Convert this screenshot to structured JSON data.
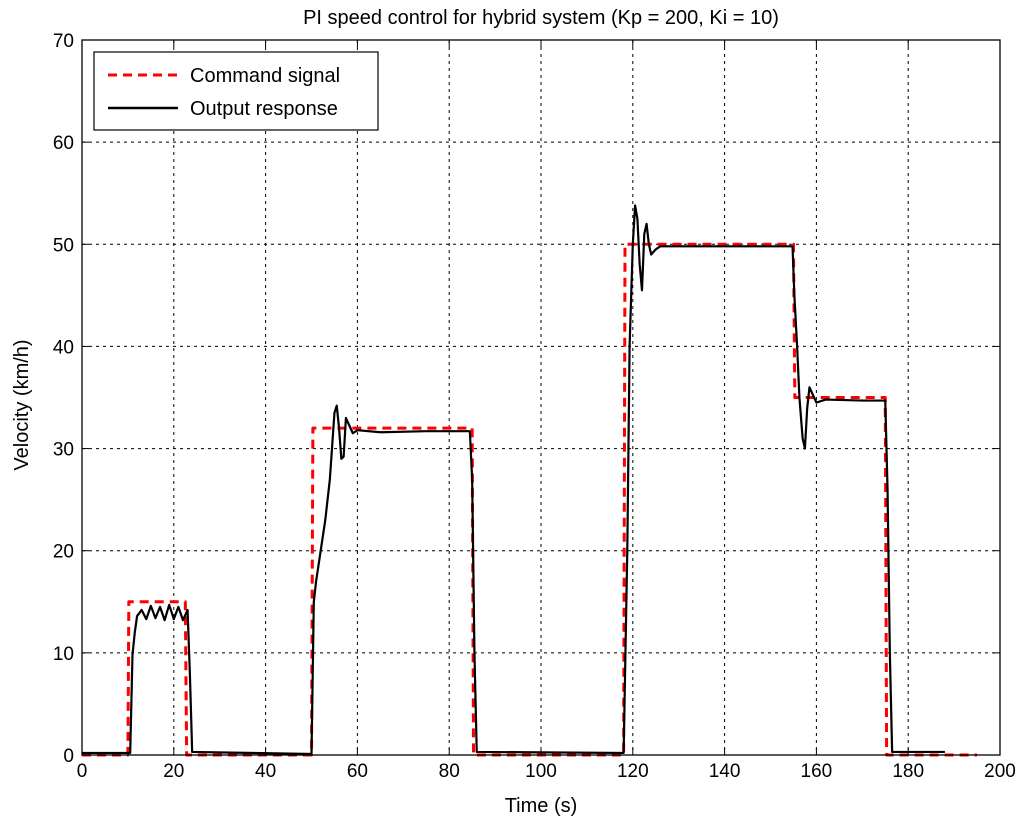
{
  "chart_data": {
    "type": "line",
    "title": "PI speed control for hybrid system (Kp = 200, Ki = 10)",
    "xlabel": "Time (s)",
    "ylabel": "Velocity (km/h)",
    "xlim": [
      0,
      200
    ],
    "ylim": [
      0,
      70
    ],
    "xticks": [
      0,
      20,
      40,
      60,
      80,
      100,
      120,
      140,
      160,
      180,
      200
    ],
    "yticks": [
      0,
      10,
      20,
      30,
      40,
      50,
      60,
      70
    ],
    "grid": true,
    "legend_position": "top-left",
    "series": [
      {
        "name": "Command signal",
        "color": "#ff0000",
        "style": "dashed",
        "points": [
          [
            0,
            0
          ],
          [
            10,
            0
          ],
          [
            10.2,
            15
          ],
          [
            22.5,
            15
          ],
          [
            22.8,
            0
          ],
          [
            50,
            0
          ],
          [
            50.3,
            32
          ],
          [
            85,
            32
          ],
          [
            85.3,
            0
          ],
          [
            118,
            0
          ],
          [
            118.3,
            50
          ],
          [
            155,
            50
          ],
          [
            155.3,
            35
          ],
          [
            175,
            35
          ],
          [
            175.3,
            0
          ],
          [
            195,
            0
          ]
        ]
      },
      {
        "name": "Output response",
        "color": "#000000",
        "style": "solid",
        "points": [
          [
            0,
            0.2
          ],
          [
            10.5,
            0.2
          ],
          [
            11,
            9.8
          ],
          [
            11.5,
            12
          ],
          [
            12,
            13.6
          ],
          [
            13,
            14.2
          ],
          [
            14,
            13.3
          ],
          [
            15,
            14.6
          ],
          [
            16,
            13.4
          ],
          [
            17,
            14.5
          ],
          [
            18,
            13.2
          ],
          [
            19,
            14.7
          ],
          [
            20,
            13.3
          ],
          [
            21,
            14.5
          ],
          [
            22,
            13.2
          ],
          [
            23,
            14.2
          ],
          [
            23.5,
            8
          ],
          [
            24,
            0.3
          ],
          [
            50,
            0.1
          ],
          [
            50.5,
            15
          ],
          [
            51,
            17
          ],
          [
            52,
            20
          ],
          [
            53,
            23
          ],
          [
            54,
            27
          ],
          [
            55,
            33.5
          ],
          [
            55.5,
            34.2
          ],
          [
            56,
            32
          ],
          [
            56.5,
            29
          ],
          [
            57,
            29.2
          ],
          [
            57.5,
            33
          ],
          [
            58,
            32.5
          ],
          [
            59,
            31.5
          ],
          [
            60,
            31.8
          ],
          [
            65,
            31.6
          ],
          [
            75,
            31.7
          ],
          [
            84.5,
            31.7
          ],
          [
            85,
            27
          ],
          [
            85.5,
            10
          ],
          [
            86,
            0.3
          ],
          [
            118,
            0.2
          ],
          [
            118.8,
            20
          ],
          [
            119.3,
            40
          ],
          [
            120,
            50
          ],
          [
            120.5,
            53.8
          ],
          [
            121,
            52.5
          ],
          [
            121.5,
            48
          ],
          [
            122,
            45.5
          ],
          [
            122.5,
            51
          ],
          [
            123,
            52
          ],
          [
            123.5,
            50
          ],
          [
            124,
            49
          ],
          [
            125,
            49.5
          ],
          [
            126,
            49.8
          ],
          [
            130,
            49.8
          ],
          [
            154.8,
            49.8
          ],
          [
            155.2,
            45
          ],
          [
            155.8,
            40
          ],
          [
            156.3,
            35
          ],
          [
            157,
            31
          ],
          [
            157.5,
            30
          ],
          [
            158,
            34
          ],
          [
            158.5,
            36
          ],
          [
            159,
            35.5
          ],
          [
            160,
            34.5
          ],
          [
            162,
            34.8
          ],
          [
            170,
            34.7
          ],
          [
            175,
            34.7
          ],
          [
            175.5,
            26
          ],
          [
            176,
            10
          ],
          [
            176.5,
            0.3
          ],
          [
            188,
            0.3
          ]
        ]
      }
    ]
  }
}
